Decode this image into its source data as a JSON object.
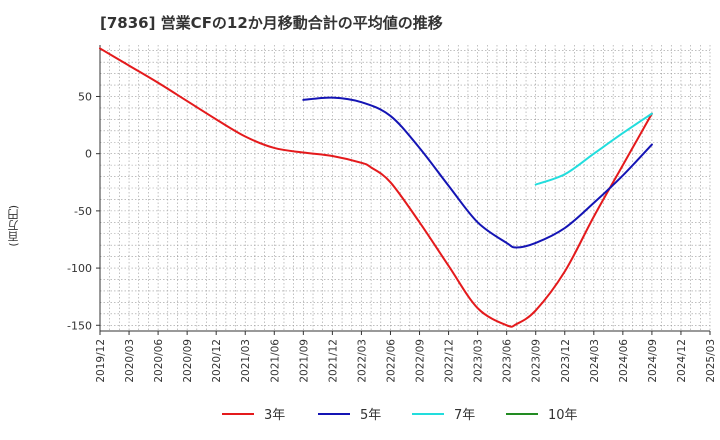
{
  "chart_data": {
    "type": "line",
    "title": "[7836]  営業CFの12か月移動合計の平均値の推移",
    "ylabel": "(百万円)",
    "xlabel": "",
    "ylim": [
      -155,
      95
    ],
    "y_ticks": [
      50,
      0,
      -50,
      -100,
      -150
    ],
    "x_ticks": [
      "2019/12",
      "2020/03",
      "2020/06",
      "2020/09",
      "2020/12",
      "2021/03",
      "2021/06",
      "2021/09",
      "2021/12",
      "2022/03",
      "2022/06",
      "2022/09",
      "2022/12",
      "2023/03",
      "2023/06",
      "2023/09",
      "2023/12",
      "2024/03",
      "2024/06",
      "2024/09",
      "2024/12",
      "2025/03"
    ],
    "grid": true,
    "legend_position": "bottom",
    "series": [
      {
        "name": "3年",
        "color": "#e41a1c",
        "x": [
          "2019/12",
          "2020/03",
          "2020/06",
          "2020/09",
          "2020/12",
          "2021/03",
          "2021/06",
          "2021/09",
          "2021/12",
          "2022/03",
          "2022/04",
          "2022/06",
          "2022/09",
          "2022/12",
          "2023/03",
          "2023/06",
          "2023/07",
          "2023/09",
          "2023/12",
          "2024/03",
          "2024/06",
          "2024/09"
        ],
        "values": [
          92,
          77,
          62,
          46,
          30,
          15,
          5,
          1,
          -2,
          -8,
          -12,
          -25,
          -60,
          -98,
          -135,
          -150,
          -149,
          -137,
          -103,
          -55,
          -10,
          35
        ]
      },
      {
        "name": "5年",
        "color": "#1414b4",
        "x": [
          "2021/09",
          "2021/12",
          "2022/03",
          "2022/06",
          "2022/09",
          "2022/12",
          "2023/03",
          "2023/06",
          "2023/07",
          "2023/09",
          "2023/12",
          "2024/03",
          "2024/06",
          "2024/09"
        ],
        "values": [
          47,
          49,
          45,
          33,
          5,
          -28,
          -60,
          -78,
          -82,
          -78,
          -65,
          -43,
          -19,
          8
        ]
      },
      {
        "name": "7年",
        "color": "#22dddd",
        "x": [
          "2023/09",
          "2023/12",
          "2024/03",
          "2024/06",
          "2024/09"
        ],
        "values": [
          -27,
          -18,
          0,
          18,
          35
        ]
      },
      {
        "name": "10年",
        "color": "#228b22",
        "x": [],
        "values": []
      }
    ]
  }
}
